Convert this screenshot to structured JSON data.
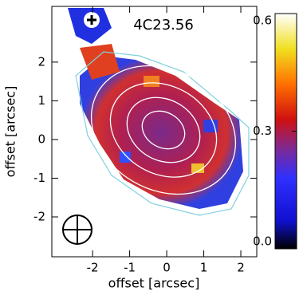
{
  "chart_data": {
    "type": "map",
    "title": "4C23.56",
    "xlabel": "offset [arcsec]",
    "ylabel": "offset [arcsec]",
    "xlim": [
      -3.1,
      2.43
    ],
    "ylim": [
      -3.03,
      3.44
    ],
    "xticks": [
      -2,
      -1,
      0,
      1,
      2
    ],
    "yticks": [
      -2,
      -1,
      0,
      1,
      2
    ],
    "colorbar": {
      "clim": [
        0,
        0.6
      ],
      "ticks": [
        {
          "value": 0,
          "label": "0.0"
        },
        0.3,
        0.6
      ]
    }
  }
}
